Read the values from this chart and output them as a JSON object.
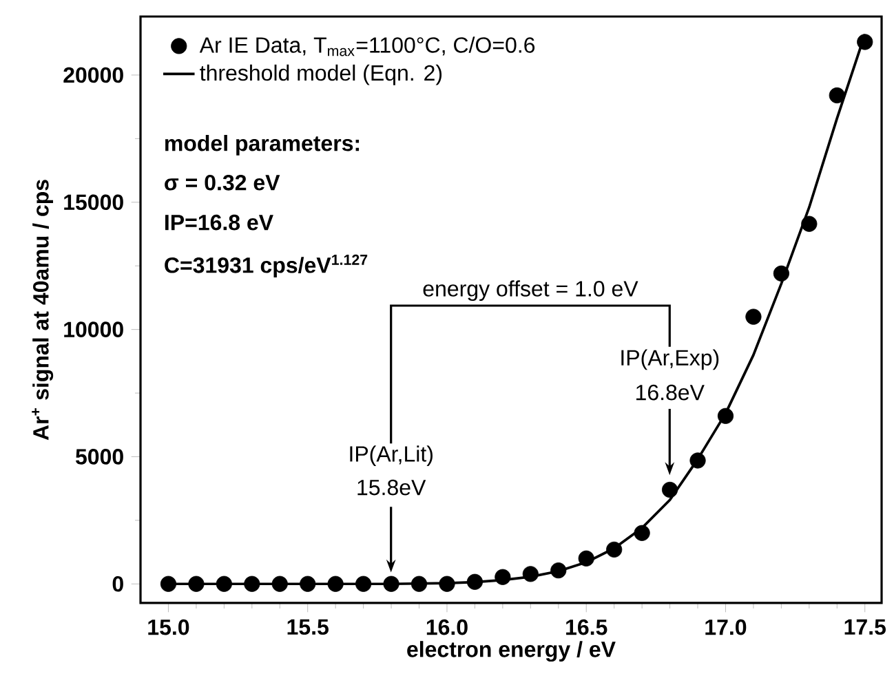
{
  "chart_data": {
    "type": "scatter",
    "xlabel": "electron energy / eV",
    "ylabel": "Ar$^{+}$ signal at 40amu / cps",
    "x": [
      15.0,
      15.1,
      15.2,
      15.3,
      15.4,
      15.5,
      15.6,
      15.7,
      15.8,
      15.9,
      16.0,
      16.1,
      16.2,
      16.3,
      16.4,
      16.5,
      16.6,
      16.7,
      16.8,
      16.9,
      17.0,
      17.1,
      17.2,
      17.3,
      17.4,
      17.5
    ],
    "series": [
      {
        "name": "Ar IE Data, T$_{max}$=1100°C, C/O=0.6",
        "color": "#000000",
        "marker": "circle",
        "values": [
          0,
          0,
          0,
          0,
          0,
          0,
          0,
          0,
          0,
          0,
          0,
          80,
          270,
          390,
          530,
          1000,
          1350,
          2000,
          3700,
          4850,
          6600,
          10500,
          12200,
          14150,
          19200,
          21300
        ]
      },
      {
        "name": "threshold model (Eqn. 2)",
        "type": "line",
        "color": "#000000",
        "line_style": "solid",
        "marker": "none",
        "x": [
          15.0,
          15.8,
          16.0,
          16.1,
          16.2,
          16.3,
          16.4,
          16.5,
          16.6,
          16.7,
          16.8,
          16.9,
          17.0,
          17.1,
          17.2,
          17.3,
          17.4,
          17.5
        ],
        "values": [
          0,
          0,
          30,
          70,
          150,
          280,
          500,
          850,
          1400,
          2200,
          3300,
          4900,
          6700,
          9000,
          11800,
          14800,
          18300,
          21600
        ]
      }
    ],
    "xlim": [
      14.9,
      17.56
    ],
    "ylim": [
      -750,
      22300
    ],
    "xticks": [
      {
        "value": 15,
        "label": "15.0"
      },
      {
        "value": 15.5,
        "label": "15.5"
      },
      {
        "value": 16,
        "label": "16.0"
      },
      {
        "value": 16.5,
        "label": "16.5"
      },
      {
        "value": 17,
        "label": "17.0"
      },
      {
        "value": 17.5,
        "label": "17.5"
      }
    ],
    "yticks": [
      0,
      5000,
      10000,
      15000,
      20000
    ],
    "grid": false,
    "legend": "top left",
    "annotations": [
      "model parameters:",
      "σ = 0.32 **eV**",
      "IP=16.8 eV",
      "C=31931 cps/eV$^{1.127}$",
      "energy offset = 1.0 eV",
      "IP(Ar,Lit)",
      "15.8eV",
      "IP(Ar,Exp)",
      "16.8eV"
    ]
  }
}
